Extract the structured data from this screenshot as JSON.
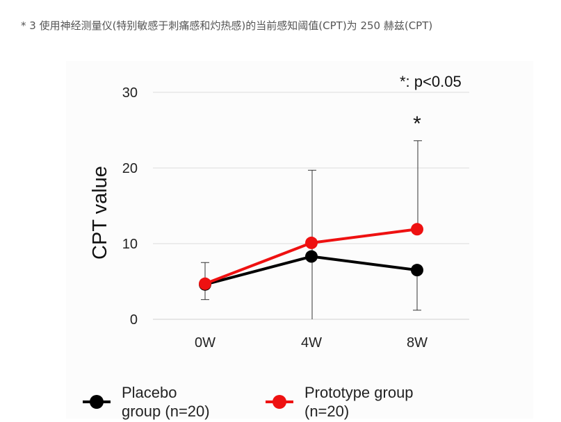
{
  "caption": "* 3 使用神经测量仪(特别敏感于刺痛感和灼热感)的当前感知阈值(CPT)为 250 赫兹(CPT)",
  "chart_data": {
    "type": "line",
    "categories": [
      "0W",
      "4W",
      "8W"
    ],
    "ylabel": "CPT value",
    "xlabel": "",
    "ylim": [
      0,
      30
    ],
    "yticks": [
      0,
      10,
      20,
      30
    ],
    "grid": true,
    "significance_note": "*: p<0.05",
    "significance_marks": [
      {
        "category": "8W",
        "label": "*"
      }
    ],
    "legend_placement": "bottom",
    "series": [
      {
        "name": "Placebo group (n=20)",
        "legend_label": "Placebo\ngroup (n=20)",
        "color": "#000000",
        "values": [
          4.6,
          8.3,
          6.5
        ],
        "error_bars": [
          [
            2.6,
            7.5
          ],
          [
            8.3,
            8.3
          ],
          [
            1.2,
            6.5
          ]
        ]
      },
      {
        "name": "Prototype group (n=20)",
        "legend_label": "Prototype group\n(n=20)",
        "color": "#ee1111",
        "values": [
          4.7,
          10.1,
          11.9
        ],
        "error_bars": [
          [
            4.7,
            4.7
          ],
          [
            0,
            19.7
          ],
          [
            11.9,
            23.6
          ]
        ]
      }
    ]
  }
}
